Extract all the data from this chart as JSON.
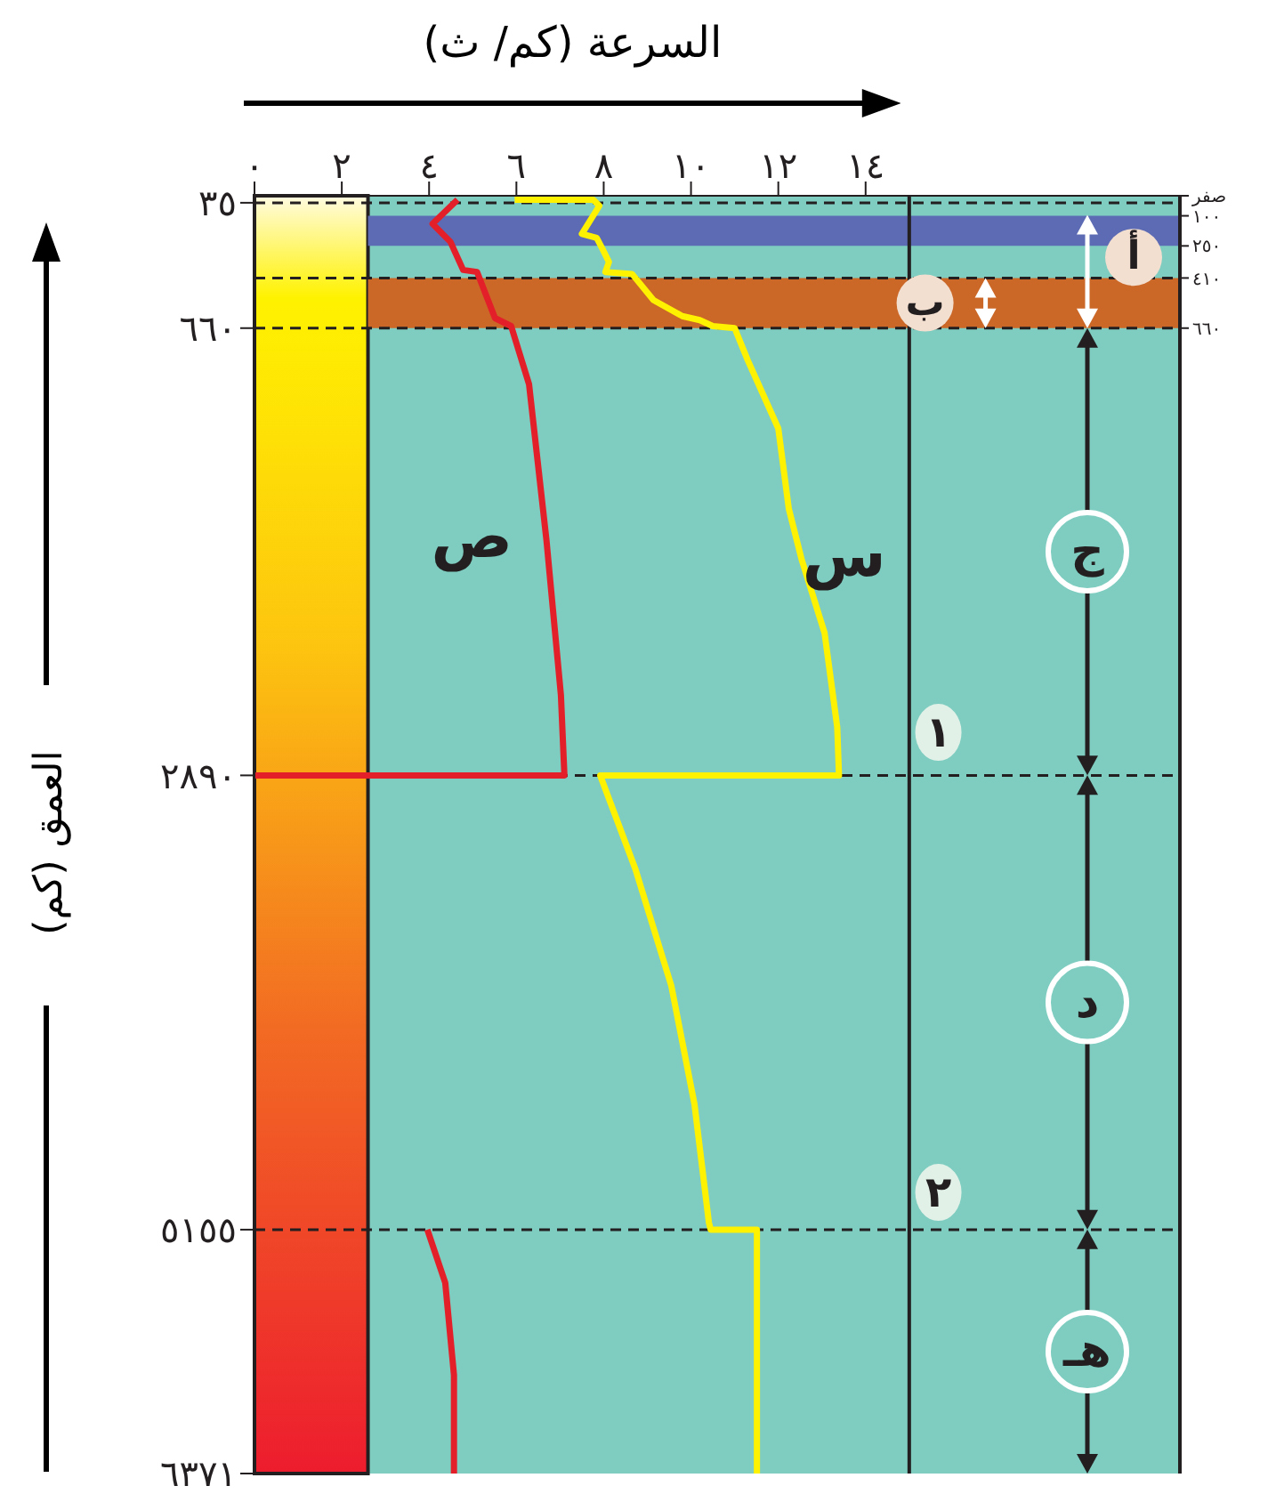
{
  "chart_data": {
    "type": "line",
    "xlabel": "السرعة (كم/ ث)",
    "ylabel": "العمق (كم)",
    "xlim": [
      0,
      21.2
    ],
    "xticks": [
      {
        "value": 0,
        "label": "٠"
      },
      {
        "value": 2,
        "label": "٢"
      },
      {
        "value": 4,
        "label": "٤"
      },
      {
        "value": 6,
        "label": "٦"
      },
      {
        "value": 8,
        "label": "٨"
      },
      {
        "value": 10,
        "label": "١٠"
      },
      {
        "value": 12,
        "label": "١٢"
      },
      {
        "value": 14,
        "label": "١٤"
      }
    ],
    "ylim": [
      6371,
      0
    ],
    "yticks": [
      {
        "value": 35,
        "label": "٣٥"
      },
      {
        "value": 660,
        "label": "٦٦٠"
      },
      {
        "value": 2890,
        "label": "٢٨٩٠"
      },
      {
        "value": 5155,
        "label": "٥١٥٥"
      },
      {
        "value": 6371,
        "label": "٦٣٧١"
      }
    ],
    "y2lim": [
      6371,
      0
    ],
    "y2ticks": [
      {
        "value": 0,
        "label": "صفر"
      },
      {
        "value": 100,
        "label": "١٠٠"
      },
      {
        "value": 250,
        "label": "٢٥٠"
      },
      {
        "value": 410,
        "label": "٤١٠"
      },
      {
        "value": 660,
        "label": "٦٦٠"
      }
    ],
    "series": [
      {
        "name": "ص",
        "color": "#e3202a",
        "x": [
          4.65,
          4.08,
          4.49,
          4.78,
          5.1,
          5.51,
          5.88,
          6.29,
          6.69,
          7.02,
          7.1,
          0,
          null,
          3.96,
          4.37,
          4.57,
          4.57
        ],
        "values": [
          20,
          140,
          230,
          370,
          380,
          610,
          650,
          940,
          1720,
          2490,
          2890,
          2890,
          null,
          5155,
          5420,
          5880,
          6371
        ]
      },
      {
        "name": "س",
        "color": "#fff200",
        "x": [
          5.96,
          7.76,
          7.9,
          7.5,
          7.84,
          7.96,
          8.12,
          8.04,
          8.65,
          9.14,
          9.8,
          10.2,
          10.5,
          11.0,
          11.3,
          12.0,
          12.24,
          12.53,
          13.06,
          13.35,
          13.39,
          7.92,
          8.73,
          9.55,
          10.08,
          10.41,
          10.45,
          11.51,
          11.51
        ],
        "values": [
          20,
          20,
          50,
          190,
          210,
          260,
          330,
          380,
          390,
          520,
          600,
          620,
          650,
          660,
          820,
          1160,
          1560,
          1810,
          2180,
          2650,
          2890,
          2890,
          3360,
          3940,
          4530,
          5120,
          5155,
          5155,
          6371
        ]
      }
    ],
    "bands": [
      {
        "axis": "x",
        "from": 0,
        "to": 2.6
      },
      {
        "axis": "y",
        "from": 100,
        "to": 250,
        "color": "#5c6bb3"
      },
      {
        "axis": "y",
        "from": 410,
        "to": 660,
        "color": "#cb6828"
      }
    ],
    "ref_lines": [
      {
        "axis": "y",
        "value": 35,
        "color": "#231f20",
        "line_style": "dashed"
      },
      {
        "axis": "y",
        "value": 410,
        "color": "#231f20",
        "line_style": "dashed"
      },
      {
        "axis": "y",
        "value": 660,
        "color": "#231f20",
        "line_style": "dashed"
      },
      {
        "axis": "y",
        "value": 2890,
        "color": "#231f20",
        "line_style": "dashed"
      },
      {
        "axis": "y",
        "value": 5155,
        "color": "#231f20",
        "line_style": "dashed"
      },
      {
        "axis": "x",
        "value": 15,
        "color": "#231f20",
        "line_style": "solid"
      }
    ],
    "annotations": [
      "أ",
      "ب",
      "ج",
      "د",
      "هـ",
      "١",
      "٢"
    ],
    "legend": false,
    "grid": false
  }
}
